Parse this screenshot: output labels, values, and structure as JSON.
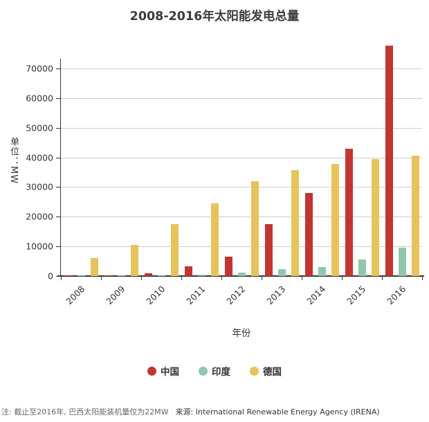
{
  "chart_data": {
    "type": "bar",
    "title": "2008-2016年太阳能发电总量",
    "xlabel": "年份",
    "ylabel": "单位：MW",
    "categories": [
      "2008",
      "2009",
      "2010",
      "2011",
      "2012",
      "2013",
      "2014",
      "2015",
      "2016"
    ],
    "series": [
      {
        "name": "中国",
        "color": "#c23531",
        "values": [
          150,
          300,
          900,
          3300,
          6600,
          17500,
          28000,
          43000,
          77800
        ]
      },
      {
        "name": "印度",
        "color": "#91c7ae",
        "values": [
          60,
          100,
          160,
          540,
          1200,
          2300,
          3100,
          5600,
          9650
        ]
      },
      {
        "name": "德国",
        "color": "#e6c35c",
        "values": [
          6100,
          10500,
          17500,
          24500,
          32000,
          35700,
          37900,
          39400,
          40700
        ]
      }
    ],
    "ylim": [
      0,
      70000
    ],
    "yticks": [
      0,
      10000,
      20000,
      30000,
      40000,
      50000,
      60000,
      70000
    ],
    "grid": true,
    "legend_position": "bottom"
  },
  "footer": {
    "note": "注: 截止至2016年, 巴西太阳能装机量仅为22MW",
    "source": "来源: International Renewable Energy Agency (IRENA)"
  }
}
